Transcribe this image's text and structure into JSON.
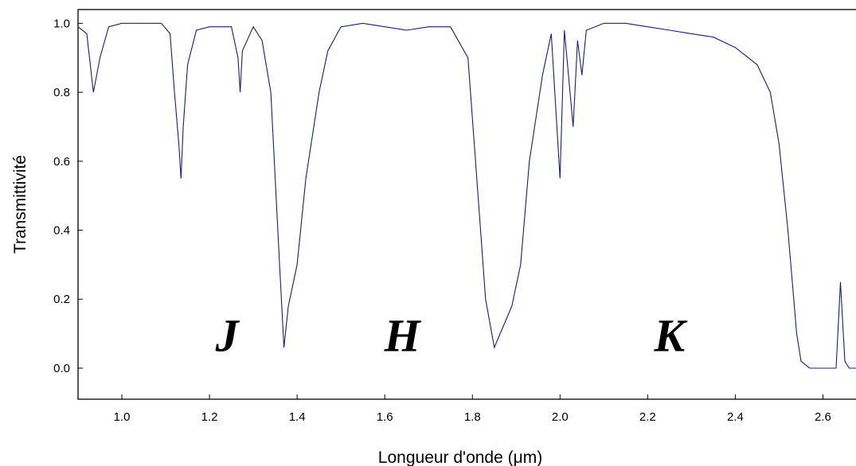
{
  "chart_data": {
    "type": "line",
    "title": "",
    "xlabel": "Longueur d'onde   (μm)",
    "ylabel": "Transmittivité",
    "xlim": [
      0.9,
      2.69
    ],
    "ylim": [
      -0.09,
      1.04
    ],
    "xticks": [
      "1.0",
      "1.2",
      "1.4",
      "1.6",
      "1.8",
      "2.0",
      "2.2",
      "2.4",
      "2.6"
    ],
    "yticks": [
      "0.0",
      "0.2",
      "0.4",
      "0.6",
      "0.8",
      "1.0"
    ],
    "grid": false,
    "line_color": "#1b1b7e",
    "band_labels": [
      {
        "text": "J",
        "x": 1.24,
        "y": 0.05
      },
      {
        "text": "H",
        "x": 1.64,
        "y": 0.05
      },
      {
        "text": "K",
        "x": 2.25,
        "y": 0.05
      }
    ],
    "series": [
      {
        "x": [
          0.9,
          0.92,
          0.935,
          0.95,
          0.97,
          1.0,
          1.05,
          1.09,
          1.11,
          1.12,
          1.13,
          1.135,
          1.14,
          1.15,
          1.17,
          1.2,
          1.25,
          1.265,
          1.27,
          1.275,
          1.3,
          1.32,
          1.34,
          1.36,
          1.37,
          1.38,
          1.4,
          1.42,
          1.45,
          1.47,
          1.5,
          1.55,
          1.6,
          1.65,
          1.7,
          1.75,
          1.79,
          1.81,
          1.83,
          1.85,
          1.87,
          1.89,
          1.91,
          1.93,
          1.96,
          1.98,
          2.0,
          2.01,
          2.03,
          2.04,
          2.05,
          2.06,
          2.08,
          2.1,
          2.15,
          2.2,
          2.25,
          2.3,
          2.35,
          2.4,
          2.45,
          2.48,
          2.5,
          2.52,
          2.54,
          2.55,
          2.57,
          2.6,
          2.63,
          2.64,
          2.65,
          2.66,
          2.69
        ],
        "values": [
          0.99,
          0.97,
          0.8,
          0.9,
          0.99,
          1.0,
          1.0,
          1.0,
          0.97,
          0.8,
          0.65,
          0.55,
          0.7,
          0.88,
          0.98,
          0.99,
          0.99,
          0.9,
          0.8,
          0.92,
          0.99,
          0.95,
          0.8,
          0.3,
          0.06,
          0.18,
          0.3,
          0.55,
          0.8,
          0.92,
          0.99,
          1.0,
          0.99,
          0.98,
          0.99,
          0.99,
          0.9,
          0.55,
          0.2,
          0.06,
          0.12,
          0.18,
          0.3,
          0.6,
          0.85,
          0.97,
          0.55,
          0.98,
          0.7,
          0.95,
          0.85,
          0.98,
          0.99,
          1.0,
          1.0,
          0.99,
          0.98,
          0.97,
          0.96,
          0.93,
          0.88,
          0.8,
          0.65,
          0.4,
          0.1,
          0.02,
          0.0,
          0.0,
          0.0,
          0.25,
          0.02,
          0.0,
          0.0
        ]
      }
    ]
  }
}
